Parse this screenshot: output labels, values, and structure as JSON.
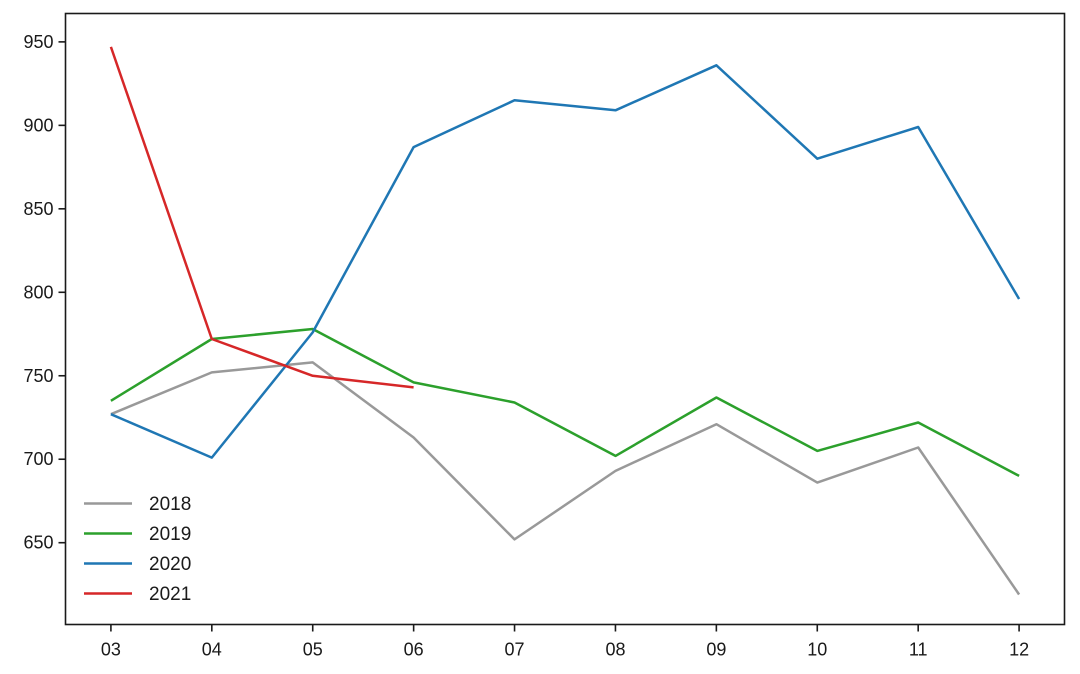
{
  "chart_data": {
    "type": "line",
    "title": "",
    "xlabel": "",
    "ylabel": "",
    "x_categories": [
      "03",
      "04",
      "05",
      "06",
      "07",
      "08",
      "09",
      "10",
      "11",
      "12"
    ],
    "x_tick_values": [
      3,
      4,
      5,
      6,
      7,
      8,
      9,
      10,
      11,
      12
    ],
    "yticks": [
      650,
      700,
      750,
      800,
      850,
      900,
      950
    ],
    "xlim": [
      2.55,
      12.45
    ],
    "ylim": [
      601,
      967
    ],
    "grid": false,
    "legend_position": "lower-left",
    "legend_frame": false,
    "series": [
      {
        "name": "2018",
        "color": "#999999",
        "x": [
          3,
          4,
          5,
          6,
          7,
          8,
          9,
          10,
          11,
          12
        ],
        "values": [
          727,
          752,
          758,
          713,
          652,
          693,
          721,
          686,
          707,
          619
        ]
      },
      {
        "name": "2019",
        "color": "#2ca02c",
        "x": [
          3,
          4,
          5,
          6,
          7,
          8,
          9,
          10,
          11,
          12
        ],
        "values": [
          735,
          772,
          778,
          746,
          734,
          702,
          737,
          705,
          722,
          690
        ]
      },
      {
        "name": "2020",
        "color": "#1f77b4",
        "x": [
          3,
          4,
          5,
          6,
          7,
          8,
          9,
          10,
          11,
          12
        ],
        "values": [
          727,
          701,
          776,
          887,
          915,
          909,
          936,
          880,
          899,
          796
        ]
      },
      {
        "name": "2021",
        "color": "#d62728",
        "x": [
          3,
          4,
          5,
          6
        ],
        "values": [
          947,
          772,
          750,
          743
        ]
      }
    ],
    "axis_color": "#1a1a1a",
    "background": "#ffffff",
    "line_width": 2.5
  }
}
